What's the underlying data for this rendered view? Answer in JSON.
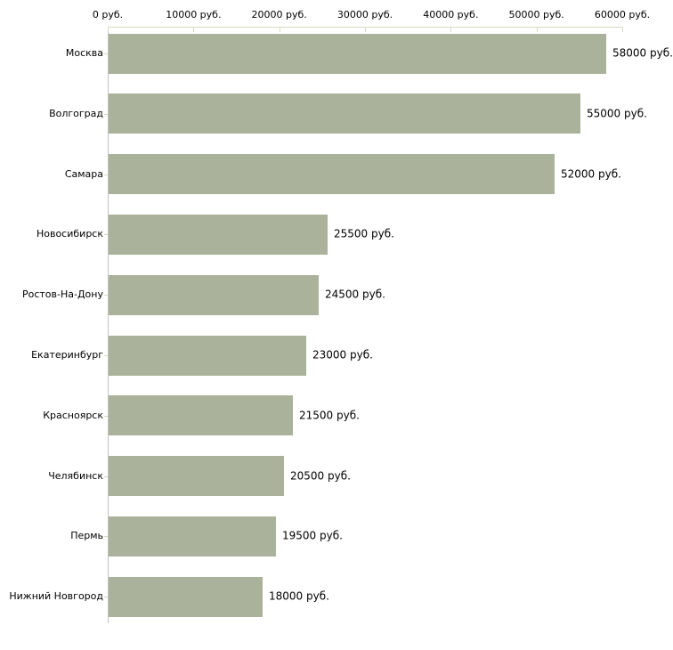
{
  "chart_data": {
    "type": "bar",
    "orientation": "horizontal",
    "title": "",
    "xlabel": "",
    "ylabel": "",
    "categories": [
      "Москва",
      "Волгоград",
      "Самара",
      "Новосибирск",
      "Ростов-На-Дону",
      "Екатеринбург",
      "Красноярск",
      "Челябинск",
      "Пермь",
      "Нижний Новгород"
    ],
    "values": [
      58000,
      55000,
      52000,
      25500,
      24500,
      23000,
      21500,
      20500,
      19500,
      18000
    ],
    "value_labels": [
      "58000 руб.",
      "55000 руб.",
      "52000 руб.",
      "25500 руб.",
      "24500 руб.",
      "23000 руб.",
      "21500 руб.",
      "20500 руб.",
      "19500 руб.",
      "18000 руб."
    ],
    "x_ticks": [
      0,
      10000,
      20000,
      30000,
      40000,
      50000,
      60000
    ],
    "x_tick_labels": [
      "0 руб.",
      "10000 руб.",
      "20000 руб.",
      "30000 руб.",
      "40000 руб.",
      "50000 руб.",
      "60000 руб."
    ],
    "xlim": [
      0,
      60000
    ],
    "axis_position": "top",
    "grid": false,
    "legend": false,
    "unit": "руб.",
    "colors": {
      "bar_fill": "#aab29b",
      "x_axis_line": "#d7d9c2",
      "y_axis_line": "#c2c2c2",
      "tick": "#d7d9c2",
      "text": "#000000",
      "background": "#ffffff"
    }
  }
}
